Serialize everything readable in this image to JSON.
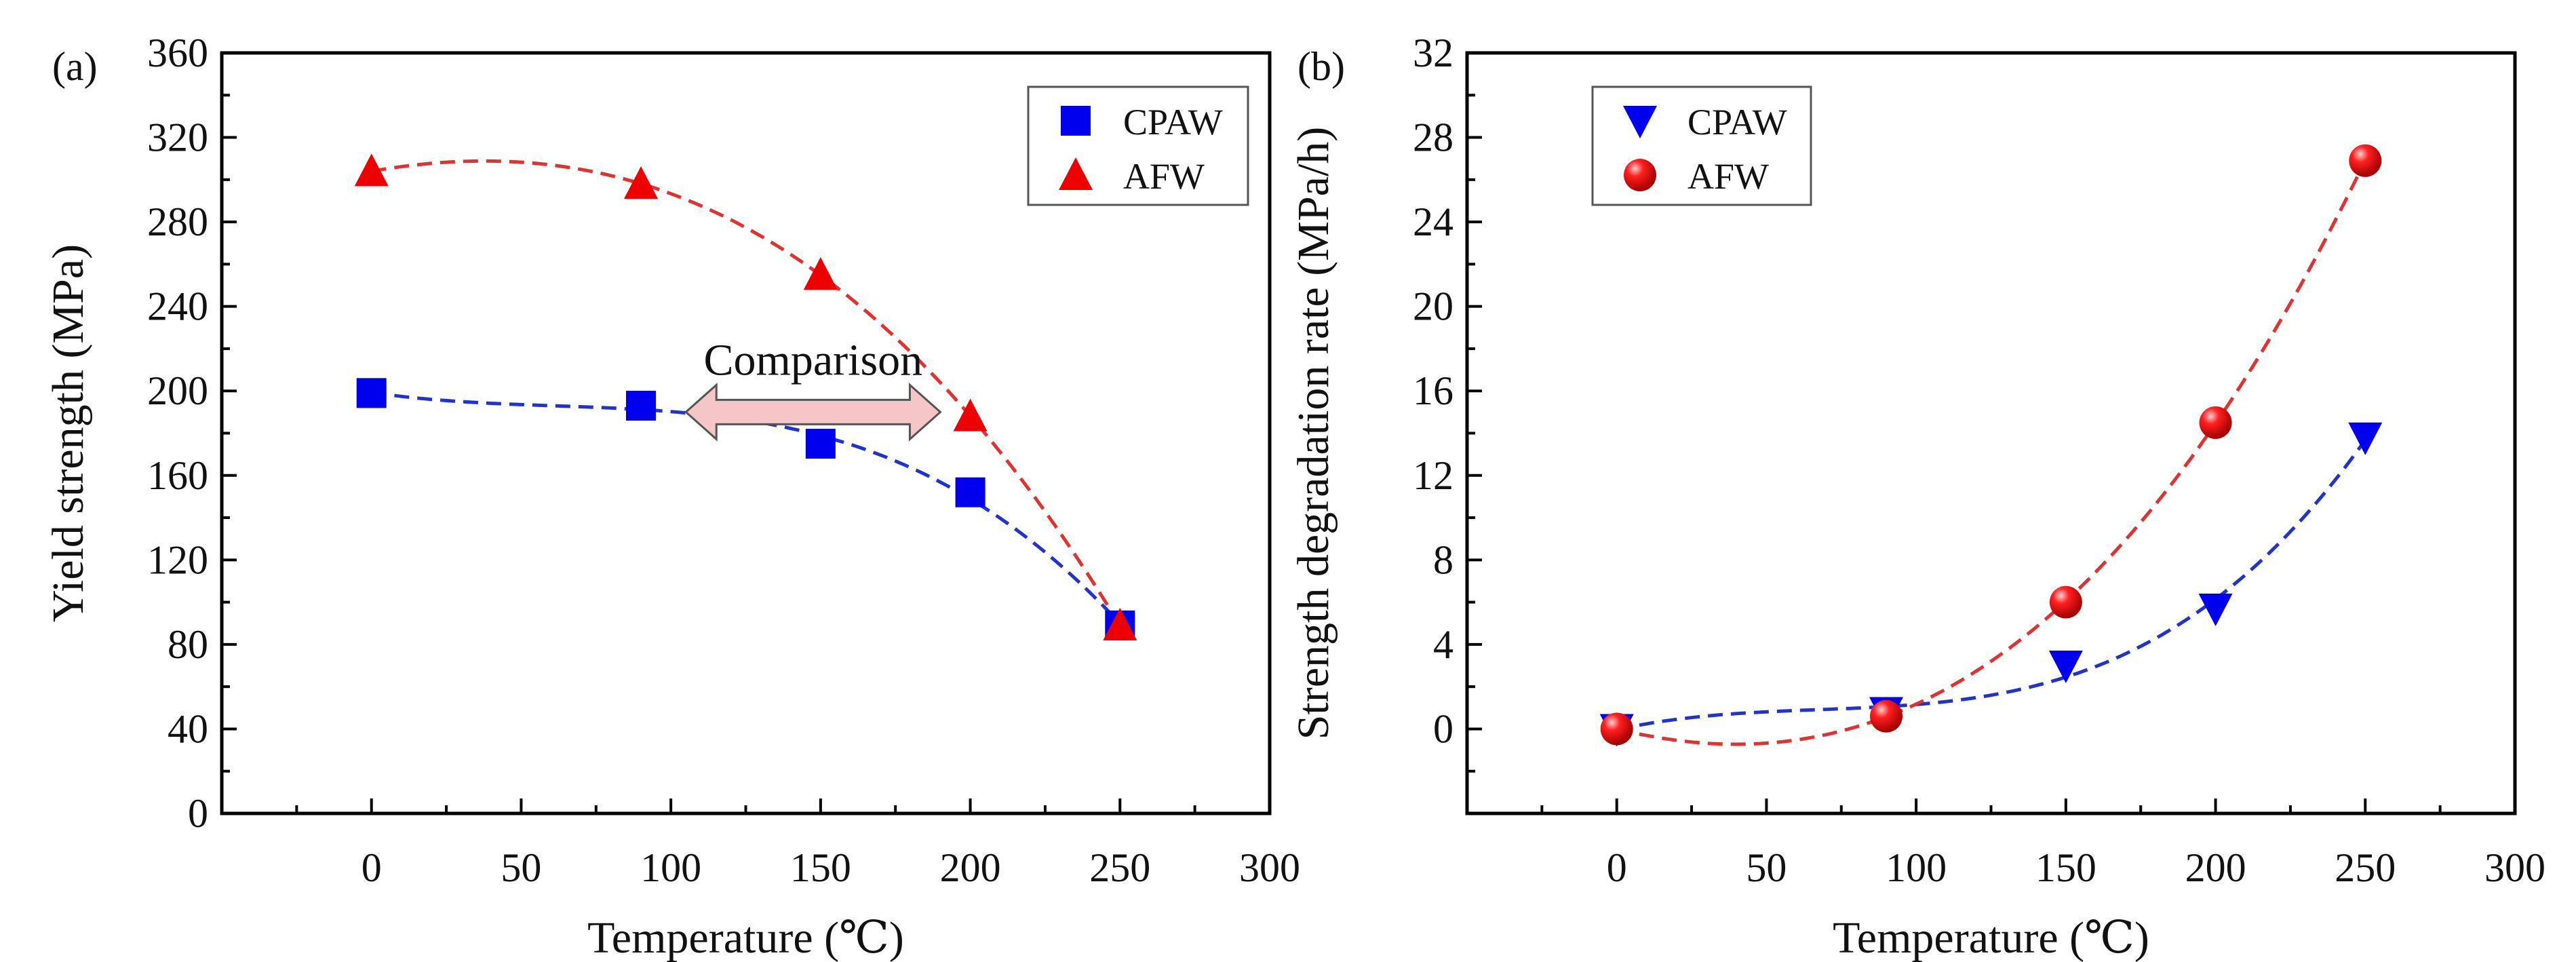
{
  "chart_data": [
    {
      "type": "scatter",
      "panel_label": "(a)",
      "xlabel": "Temperature (℃)",
      "ylabel": "Yield strength (MPa)",
      "xlim": [
        -50,
        300
      ],
      "ylim": [
        0,
        360
      ],
      "xticks": [
        0,
        50,
        100,
        150,
        200,
        250,
        300
      ],
      "yticks": [
        0,
        40,
        80,
        120,
        160,
        200,
        240,
        280,
        320,
        360
      ],
      "legend_position": "top-right",
      "annotation": {
        "text": "Comparison",
        "from_x": 105,
        "to_x": 190,
        "y": 190
      },
      "series": [
        {
          "name": "CPAW",
          "marker": "square",
          "color": "#0000ee",
          "x": [
            0,
            90,
            150,
            200,
            250
          ],
          "y": [
            199,
            193,
            175,
            152,
            89
          ]
        },
        {
          "name": "AFW",
          "marker": "triangle-up",
          "color": "#ee0000",
          "x": [
            0,
            90,
            150,
            200,
            250
          ],
          "y": [
            304,
            298,
            255,
            188,
            89
          ]
        }
      ]
    },
    {
      "type": "scatter",
      "panel_label": "(b)",
      "xlabel": "Temperature (℃)",
      "ylabel": "Strength  degradation rate (MPa/h)",
      "xlim": [
        -50,
        300
      ],
      "ylim": [
        -4,
        32
      ],
      "xticks": [
        0,
        50,
        100,
        150,
        200,
        250,
        300
      ],
      "yticks": [
        0,
        4,
        8,
        12,
        16,
        20,
        24,
        28,
        32
      ],
      "legend_position": "top-left",
      "series": [
        {
          "name": "CPAW",
          "marker": "triangle-down",
          "color": "#0000ee",
          "x": [
            0,
            90,
            150,
            200,
            250
          ],
          "y": [
            0,
            0.8,
            3.0,
            5.7,
            13.8
          ]
        },
        {
          "name": "AFW",
          "marker": "sphere",
          "color": "#ee0000",
          "x": [
            0,
            90,
            150,
            200,
            250
          ],
          "y": [
            0,
            0.6,
            6.0,
            14.5,
            26.9
          ]
        }
      ]
    }
  ]
}
